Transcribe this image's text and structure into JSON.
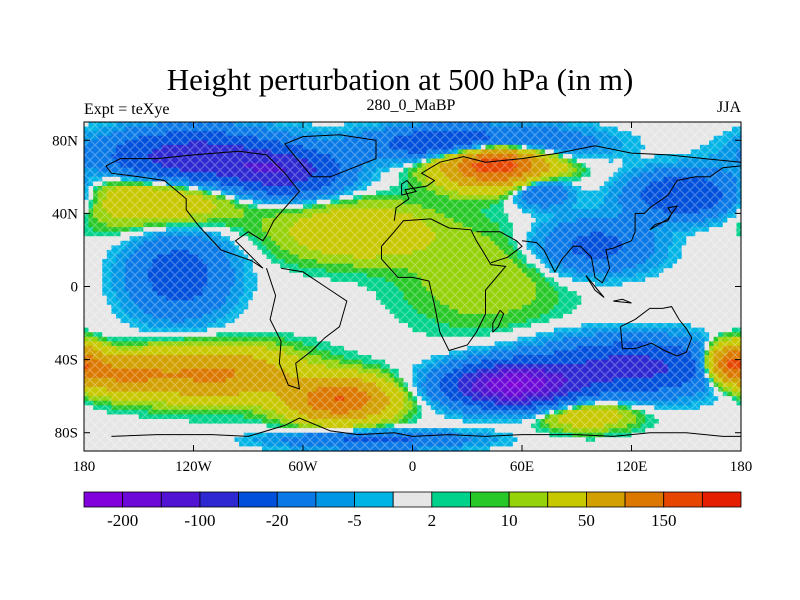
{
  "title": "Height perturbation at 500 hPa (in m)",
  "subtitle_left": "Expt = teXye",
  "subtitle_center": "280_0_MaBP",
  "subtitle_right": "JJA",
  "chart_data": {
    "type": "heatmap",
    "title": "Height perturbation at 500 hPa (in m)",
    "xlabel": "",
    "ylabel": "",
    "xlim": [
      -180,
      180
    ],
    "ylim": [
      -90,
      90
    ],
    "x_ticks": [
      {
        "value": -180,
        "label": "180"
      },
      {
        "value": -120,
        "label": "120W"
      },
      {
        "value": -60,
        "label": "60W"
      },
      {
        "value": 0,
        "label": "0"
      },
      {
        "value": 60,
        "label": "60E"
      },
      {
        "value": 120,
        "label": "120E"
      },
      {
        "value": 180,
        "label": "180"
      }
    ],
    "y_ticks": [
      {
        "value": 80,
        "label": "80N"
      },
      {
        "value": 40,
        "label": "40N"
      },
      {
        "value": 0,
        "label": "0"
      },
      {
        "value": -40,
        "label": "40S"
      },
      {
        "value": -80,
        "label": "80S"
      }
    ],
    "colorbar": {
      "colors": [
        "#8200dc",
        "#6e0ad8",
        "#5014d2",
        "#2d28d2",
        "#0050dc",
        "#0a78e6",
        "#0096e6",
        "#00b4e6",
        "#e6e6e6",
        "#00d28c",
        "#28c828",
        "#96d20a",
        "#c8c800",
        "#d2a000",
        "#dc7800",
        "#e64600",
        "#e61e00"
      ],
      "labels": [
        {
          "index": 1,
          "label": "-200"
        },
        {
          "index": 3,
          "label": "-100"
        },
        {
          "index": 5,
          "label": "-20"
        },
        {
          "index": 7,
          "label": "-5"
        },
        {
          "index": 9,
          "label": "2"
        },
        {
          "index": 11,
          "label": "10"
        },
        {
          "index": 13,
          "label": "50"
        },
        {
          "index": 15,
          "label": "150"
        }
      ]
    },
    "features": [
      {
        "lon": -120,
        "lat": 70,
        "amp": -150,
        "slon": 45,
        "slat": 14
      },
      {
        "lon": -70,
        "lat": 62,
        "amp": -120,
        "slon": 30,
        "slat": 12
      },
      {
        "lon": -128,
        "lat": 6,
        "amp": -75,
        "slon": 26,
        "slat": 22
      },
      {
        "lon": 35,
        "lat": 78,
        "amp": -130,
        "slon": 50,
        "slat": 9
      },
      {
        "lon": 45,
        "lat": 68,
        "amp": 210,
        "slon": 28,
        "slat": 12
      },
      {
        "lon": 100,
        "lat": 22,
        "amp": -65,
        "slon": 30,
        "slat": 14
      },
      {
        "lon": 150,
        "lat": 50,
        "amp": -105,
        "slon": 28,
        "slat": 12
      },
      {
        "lon": 70,
        "lat": 52,
        "amp": -60,
        "slon": 15,
        "slat": 8
      },
      {
        "lon": -140,
        "lat": 50,
        "amp": 55,
        "slon": 45,
        "slat": 16
      },
      {
        "lon": -30,
        "lat": 30,
        "amp": 45,
        "slon": 40,
        "slat": 15
      },
      {
        "lon": -110,
        "lat": -48,
        "amp": 110,
        "slon": 42,
        "slat": 13
      },
      {
        "lon": -40,
        "lat": -62,
        "amp": 150,
        "slon": 26,
        "slat": 11
      },
      {
        "lon": -160,
        "lat": -48,
        "amp": 90,
        "slon": 22,
        "slat": 10
      },
      {
        "lon": 55,
        "lat": -54,
        "amp": -240,
        "slon": 32,
        "slat": 11
      },
      {
        "lon": 120,
        "lat": -44,
        "amp": -120,
        "slon": 48,
        "slat": 14
      },
      {
        "lon": 175,
        "lat": -42,
        "amp": 170,
        "slon": 14,
        "slat": 10
      },
      {
        "lon": 95,
        "lat": -70,
        "amp": 45,
        "slon": 25,
        "slat": 8
      },
      {
        "lon": -20,
        "lat": -84,
        "amp": -60,
        "slon": 50,
        "slat": 5
      },
      {
        "lon": 40,
        "lat": 5,
        "amp": 20,
        "slon": 40,
        "slat": 25
      }
    ],
    "coastlines": [
      [
        [
          -165,
          -82
        ],
        [
          -140,
          -81
        ],
        [
          -110,
          -81
        ],
        [
          -90,
          -82
        ],
        [
          -70,
          -76
        ],
        [
          -62,
          -72
        ],
        [
          -45,
          -79
        ],
        [
          -30,
          -81
        ],
        [
          -10,
          -80
        ],
        [
          0,
          -82
        ],
        [
          20,
          -81
        ],
        [
          40,
          -82
        ],
        [
          60,
          -81
        ],
        [
          90,
          -81
        ],
        [
          110,
          -82
        ],
        [
          130,
          -80
        ],
        [
          150,
          -80
        ],
        [
          170,
          -82
        ],
        [
          180,
          -82
        ]
      ],
      [
        [
          -80,
          10
        ],
        [
          -78,
          4
        ],
        [
          -75,
          -5
        ],
        [
          -78,
          -18
        ],
        [
          -72,
          -30
        ],
        [
          -73,
          -42
        ],
        [
          -68,
          -54
        ],
        [
          -62,
          -56
        ],
        [
          -64,
          -42
        ],
        [
          -55,
          -35
        ],
        [
          -48,
          -28
        ],
        [
          -40,
          -22
        ],
        [
          -36,
          -8
        ],
        [
          -48,
          0
        ],
        [
          -60,
          8
        ],
        [
          -72,
          10
        ]
      ],
      [
        [
          -168,
          66
        ],
        [
          -160,
          70
        ],
        [
          -140,
          70
        ],
        [
          -120,
          72
        ],
        [
          -95,
          74
        ],
        [
          -80,
          72
        ],
        [
          -70,
          62
        ],
        [
          -62,
          52
        ],
        [
          -70,
          43
        ],
        [
          -76,
          36
        ],
        [
          -80,
          28
        ],
        [
          -82,
          25
        ],
        [
          -90,
          30
        ],
        [
          -97,
          25
        ],
        [
          -90,
          18
        ],
        [
          -82,
          10
        ],
        [
          -88,
          14
        ],
        [
          -105,
          20
        ],
        [
          -117,
          33
        ],
        [
          -124,
          42
        ],
        [
          -124,
          48
        ],
        [
          -136,
          58
        ],
        [
          -150,
          60
        ],
        [
          -165,
          62
        ],
        [
          -168,
          66
        ]
      ],
      [
        [
          -55,
          60
        ],
        [
          -45,
          60
        ],
        [
          -20,
          70
        ],
        [
          -20,
          80
        ],
        [
          -40,
          83
        ],
        [
          -60,
          82
        ],
        [
          -70,
          78
        ],
        [
          -55,
          60
        ]
      ],
      [
        [
          -10,
          36
        ],
        [
          -9,
          43
        ],
        [
          -2,
          48
        ],
        [
          -4,
          53
        ],
        [
          8,
          55
        ],
        [
          12,
          58
        ],
        [
          5,
          62
        ],
        [
          15,
          68
        ],
        [
          28,
          71
        ],
        [
          40,
          68
        ],
        [
          60,
          70
        ],
        [
          80,
          73
        ],
        [
          100,
          77
        ],
        [
          120,
          73
        ],
        [
          140,
          72
        ],
        [
          160,
          70
        ],
        [
          180,
          68
        ]
      ],
      [
        [
          -17,
          15
        ],
        [
          -17,
          22
        ],
        [
          -10,
          30
        ],
        [
          -5,
          36
        ],
        [
          10,
          37
        ],
        [
          20,
          32
        ],
        [
          32,
          31
        ],
        [
          35,
          25
        ],
        [
          43,
          12
        ],
        [
          51,
          11
        ],
        [
          40,
          -2
        ],
        [
          40,
          -15
        ],
        [
          35,
          -25
        ],
        [
          30,
          -32
        ],
        [
          20,
          -35
        ],
        [
          15,
          -25
        ],
        [
          12,
          -10
        ],
        [
          9,
          3
        ],
        [
          0,
          5
        ],
        [
          -8,
          5
        ],
        [
          -17,
          15
        ]
      ],
      [
        [
          35,
          30
        ],
        [
          48,
          30
        ],
        [
          57,
          25
        ],
        [
          60,
          22
        ],
        [
          52,
          16
        ],
        [
          43,
          13
        ]
      ],
      [
        [
          60,
          25
        ],
        [
          68,
          24
        ],
        [
          72,
          20
        ],
        [
          78,
          8
        ],
        [
          82,
          15
        ],
        [
          88,
          22
        ],
        [
          92,
          22
        ],
        [
          98,
          16
        ],
        [
          100,
          5
        ],
        [
          104,
          2
        ],
        [
          108,
          10
        ],
        [
          106,
          20
        ],
        [
          110,
          21
        ],
        [
          120,
          25
        ],
        [
          122,
          30
        ],
        [
          122,
          40
        ],
        [
          127,
          40
        ],
        [
          130,
          43
        ],
        [
          140,
          50
        ],
        [
          145,
          58
        ],
        [
          155,
          60
        ],
        [
          163,
          60
        ],
        [
          170,
          65
        ],
        [
          180,
          66
        ]
      ],
      [
        [
          114,
          -22
        ],
        [
          122,
          -18
        ],
        [
          130,
          -12
        ],
        [
          137,
          -12
        ],
        [
          142,
          -11
        ],
        [
          146,
          -18
        ],
        [
          150,
          -23
        ],
        [
          153,
          -28
        ],
        [
          150,
          -36
        ],
        [
          145,
          -38
        ],
        [
          138,
          -35
        ],
        [
          131,
          -31
        ],
        [
          122,
          -34
        ],
        [
          115,
          -34
        ],
        [
          114,
          -22
        ]
      ],
      [
        [
          44,
          -25
        ],
        [
          47,
          -22
        ],
        [
          50,
          -15
        ],
        [
          48,
          -13
        ],
        [
          44,
          -20
        ],
        [
          44,
          -25
        ]
      ],
      [
        [
          130,
          31
        ],
        [
          133,
          34
        ],
        [
          140,
          36
        ],
        [
          142,
          40
        ],
        [
          140,
          43
        ],
        [
          145,
          44
        ],
        [
          140,
          37
        ],
        [
          130,
          31
        ]
      ],
      [
        [
          -6,
          50
        ],
        [
          2,
          52
        ],
        [
          -3,
          58
        ],
        [
          -6,
          56
        ],
        [
          -6,
          50
        ]
      ],
      [
        [
          95,
          6
        ],
        [
          105,
          -6
        ],
        [
          100,
          -2
        ],
        [
          95,
          6
        ]
      ],
      [
        [
          110,
          -8
        ],
        [
          120,
          -9
        ],
        [
          115,
          -7
        ],
        [
          110,
          -8
        ]
      ]
    ]
  }
}
